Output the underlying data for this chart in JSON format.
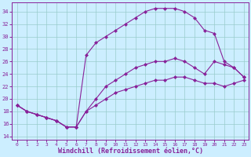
{
  "background_color": "#cceeff",
  "grid_color": "#99cccc",
  "line_color": "#882299",
  "marker_style": "D",
  "marker_size": 2.0,
  "line_width": 0.8,
  "xlabel": "Windchill (Refroidissement éolien,°C)",
  "xlabel_fontsize": 6,
  "xlim": [
    -0.5,
    23.5
  ],
  "ylim": [
    13.5,
    35.5
  ],
  "yticks": [
    14,
    16,
    18,
    20,
    22,
    24,
    26,
    28,
    30,
    32,
    34
  ],
  "xticks": [
    0,
    1,
    2,
    3,
    4,
    5,
    6,
    7,
    8,
    9,
    10,
    11,
    12,
    13,
    14,
    15,
    16,
    17,
    18,
    19,
    20,
    21,
    22,
    23
  ],
  "series": [
    {
      "x": [
        0,
        1,
        2,
        3,
        4,
        5,
        6,
        7,
        8,
        9,
        10,
        11,
        12,
        13,
        14,
        15,
        16,
        17,
        18,
        19,
        20,
        21,
        22,
        23
      ],
      "y": [
        19,
        18,
        17.5,
        17,
        16.5,
        15.5,
        15.5,
        18,
        19,
        20,
        21,
        21.5,
        22,
        22.5,
        23,
        23,
        23.5,
        23.5,
        23,
        22.5,
        22.5,
        22,
        22.5,
        23
      ]
    },
    {
      "x": [
        0,
        1,
        2,
        3,
        4,
        5,
        6,
        7,
        8,
        9,
        10,
        11,
        12,
        13,
        14,
        15,
        16,
        17,
        18,
        19,
        20,
        21,
        22,
        23
      ],
      "y": [
        19,
        18,
        17.5,
        17,
        16.5,
        15.5,
        15.5,
        18,
        20,
        22,
        23,
        24,
        25,
        25.5,
        26,
        26,
        26.5,
        26,
        25,
        24,
        26,
        25.5,
        25,
        23.5
      ]
    },
    {
      "x": [
        0,
        1,
        2,
        3,
        4,
        5,
        6,
        7,
        8,
        9,
        10,
        11,
        12,
        13,
        14,
        15,
        16,
        17,
        18,
        19,
        20,
        21,
        22,
        23
      ],
      "y": [
        19,
        18,
        17.5,
        17,
        16.5,
        15.5,
        15.5,
        27,
        29,
        30,
        31,
        32,
        33,
        34,
        34.5,
        34.5,
        34.5,
        34,
        33,
        31,
        30.5,
        26,
        25,
        23.5
      ]
    }
  ]
}
